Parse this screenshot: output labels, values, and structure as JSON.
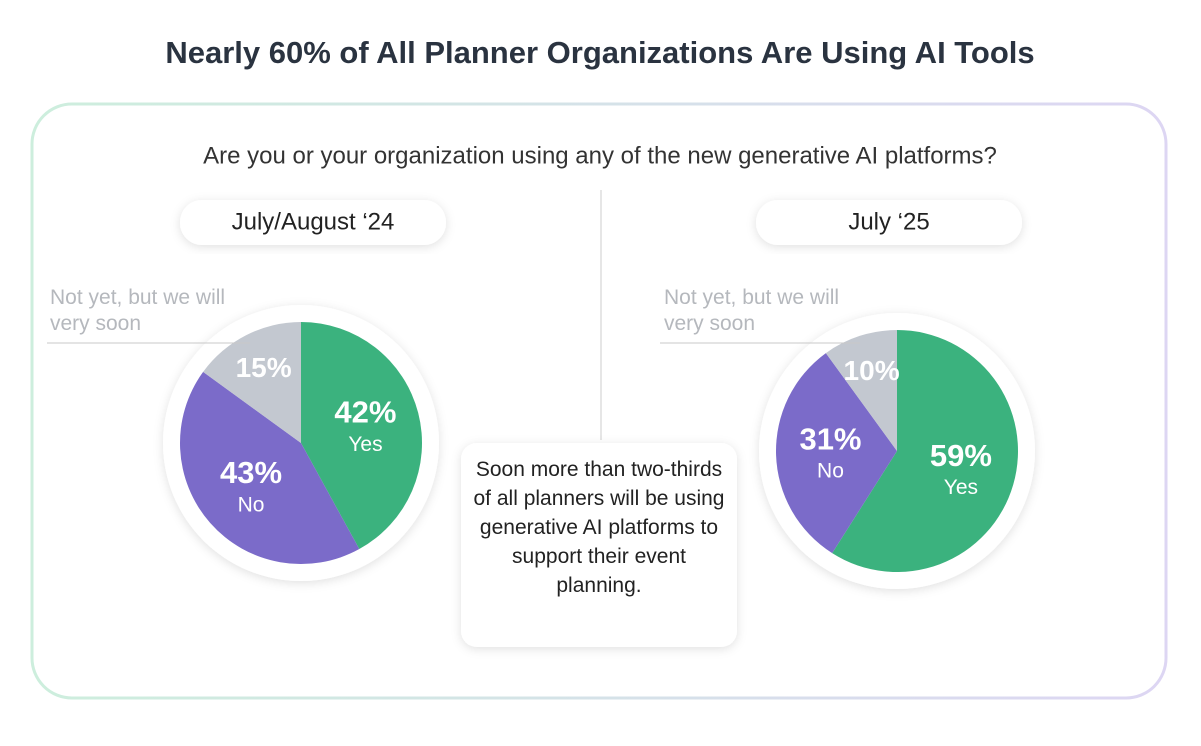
{
  "title": "Nearly 60% of All Planner Organizations Are Using AI Tools",
  "question": "Are you or your organization using any of the new generative AI platforms?",
  "callout": "Soon more than two-thirds of all planners will be using generative AI platforms to support their event planning.",
  "chart_data": [
    {
      "type": "pie",
      "title": "July/August ‘24",
      "categories": [
        "Yes",
        "No",
        "Not yet, but we will very soon"
      ],
      "values": [
        42,
        43,
        15
      ],
      "value_labels": [
        "42%",
        "43%",
        "15%"
      ],
      "colors": [
        "#3bb27e",
        "#7b6bc9",
        "#c3c8d0"
      ]
    },
    {
      "type": "pie",
      "title": "July ‘25",
      "categories": [
        "Yes",
        "No",
        "Not yet, but we will very soon"
      ],
      "values": [
        59,
        31,
        10
      ],
      "value_labels": [
        "59%",
        "31%",
        "10%"
      ],
      "colors": [
        "#3bb27e",
        "#7b6bc9",
        "#c3c8d0"
      ]
    }
  ]
}
